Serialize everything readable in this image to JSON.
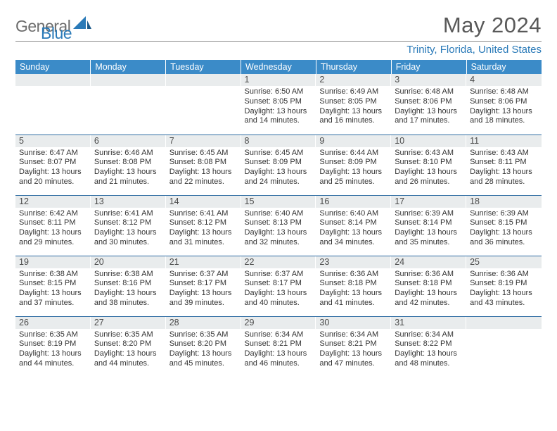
{
  "logo": {
    "part1": "General",
    "part2": "Blue"
  },
  "title": "May 2024",
  "location": "Trinity, Florida, United States",
  "colors": {
    "header_bg": "#3b8bc8",
    "header_text": "#ffffff",
    "daynum_bg": "#e9eced",
    "row_divider": "#2f6da3",
    "logo_gray": "#6d6d6d",
    "logo_blue": "#2a7ab8"
  },
  "weekdays": [
    "Sunday",
    "Monday",
    "Tuesday",
    "Wednesday",
    "Thursday",
    "Friday",
    "Saturday"
  ],
  "weeks": [
    [
      null,
      null,
      null,
      {
        "n": "1",
        "sr": "6:50 AM",
        "ss": "8:05 PM",
        "dl": "13 hours and 14 minutes."
      },
      {
        "n": "2",
        "sr": "6:49 AM",
        "ss": "8:05 PM",
        "dl": "13 hours and 16 minutes."
      },
      {
        "n": "3",
        "sr": "6:48 AM",
        "ss": "8:06 PM",
        "dl": "13 hours and 17 minutes."
      },
      {
        "n": "4",
        "sr": "6:48 AM",
        "ss": "8:06 PM",
        "dl": "13 hours and 18 minutes."
      }
    ],
    [
      {
        "n": "5",
        "sr": "6:47 AM",
        "ss": "8:07 PM",
        "dl": "13 hours and 20 minutes."
      },
      {
        "n": "6",
        "sr": "6:46 AM",
        "ss": "8:08 PM",
        "dl": "13 hours and 21 minutes."
      },
      {
        "n": "7",
        "sr": "6:45 AM",
        "ss": "8:08 PM",
        "dl": "13 hours and 22 minutes."
      },
      {
        "n": "8",
        "sr": "6:45 AM",
        "ss": "8:09 PM",
        "dl": "13 hours and 24 minutes."
      },
      {
        "n": "9",
        "sr": "6:44 AM",
        "ss": "8:09 PM",
        "dl": "13 hours and 25 minutes."
      },
      {
        "n": "10",
        "sr": "6:43 AM",
        "ss": "8:10 PM",
        "dl": "13 hours and 26 minutes."
      },
      {
        "n": "11",
        "sr": "6:43 AM",
        "ss": "8:11 PM",
        "dl": "13 hours and 28 minutes."
      }
    ],
    [
      {
        "n": "12",
        "sr": "6:42 AM",
        "ss": "8:11 PM",
        "dl": "13 hours and 29 minutes."
      },
      {
        "n": "13",
        "sr": "6:41 AM",
        "ss": "8:12 PM",
        "dl": "13 hours and 30 minutes."
      },
      {
        "n": "14",
        "sr": "6:41 AM",
        "ss": "8:12 PM",
        "dl": "13 hours and 31 minutes."
      },
      {
        "n": "15",
        "sr": "6:40 AM",
        "ss": "8:13 PM",
        "dl": "13 hours and 32 minutes."
      },
      {
        "n": "16",
        "sr": "6:40 AM",
        "ss": "8:14 PM",
        "dl": "13 hours and 34 minutes."
      },
      {
        "n": "17",
        "sr": "6:39 AM",
        "ss": "8:14 PM",
        "dl": "13 hours and 35 minutes."
      },
      {
        "n": "18",
        "sr": "6:39 AM",
        "ss": "8:15 PM",
        "dl": "13 hours and 36 minutes."
      }
    ],
    [
      {
        "n": "19",
        "sr": "6:38 AM",
        "ss": "8:15 PM",
        "dl": "13 hours and 37 minutes."
      },
      {
        "n": "20",
        "sr": "6:38 AM",
        "ss": "8:16 PM",
        "dl": "13 hours and 38 minutes."
      },
      {
        "n": "21",
        "sr": "6:37 AM",
        "ss": "8:17 PM",
        "dl": "13 hours and 39 minutes."
      },
      {
        "n": "22",
        "sr": "6:37 AM",
        "ss": "8:17 PM",
        "dl": "13 hours and 40 minutes."
      },
      {
        "n": "23",
        "sr": "6:36 AM",
        "ss": "8:18 PM",
        "dl": "13 hours and 41 minutes."
      },
      {
        "n": "24",
        "sr": "6:36 AM",
        "ss": "8:18 PM",
        "dl": "13 hours and 42 minutes."
      },
      {
        "n": "25",
        "sr": "6:36 AM",
        "ss": "8:19 PM",
        "dl": "13 hours and 43 minutes."
      }
    ],
    [
      {
        "n": "26",
        "sr": "6:35 AM",
        "ss": "8:19 PM",
        "dl": "13 hours and 44 minutes."
      },
      {
        "n": "27",
        "sr": "6:35 AM",
        "ss": "8:20 PM",
        "dl": "13 hours and 44 minutes."
      },
      {
        "n": "28",
        "sr": "6:35 AM",
        "ss": "8:20 PM",
        "dl": "13 hours and 45 minutes."
      },
      {
        "n": "29",
        "sr": "6:34 AM",
        "ss": "8:21 PM",
        "dl": "13 hours and 46 minutes."
      },
      {
        "n": "30",
        "sr": "6:34 AM",
        "ss": "8:21 PM",
        "dl": "13 hours and 47 minutes."
      },
      {
        "n": "31",
        "sr": "6:34 AM",
        "ss": "8:22 PM",
        "dl": "13 hours and 48 minutes."
      },
      null
    ]
  ],
  "labels": {
    "sunrise": "Sunrise:",
    "sunset": "Sunset:",
    "daylight": "Daylight:"
  }
}
